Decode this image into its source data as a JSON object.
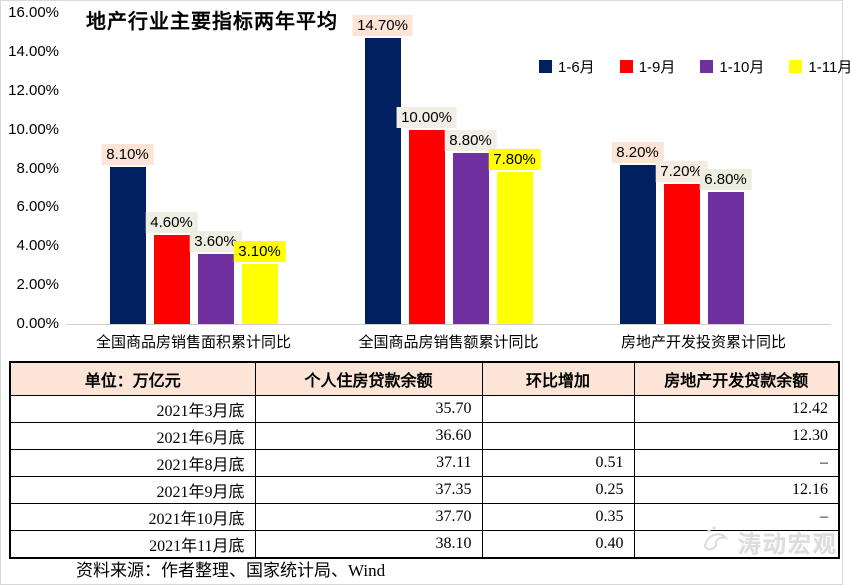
{
  "chart_data": {
    "type": "bar",
    "title": "地产行业主要指标两年平均",
    "categories": [
      "全国商品房销售面积累计同比",
      "全国商品房销售额累计同比",
      "房地产开发投资累计同比"
    ],
    "series": [
      {
        "name": "1-6月",
        "color": "#002060",
        "values": [
          8.1,
          14.7,
          8.2
        ]
      },
      {
        "name": "1-9月",
        "color": "#FF0000",
        "values": [
          4.6,
          10.0,
          7.2
        ]
      },
      {
        "name": "1-10月",
        "color": "#7030A0",
        "values": [
          3.6,
          8.8,
          6.8
        ]
      },
      {
        "name": "1-11月",
        "color": "#FFFF00",
        "values": [
          3.1,
          7.8,
          null
        ]
      }
    ],
    "data_labels": [
      [
        "8.10%",
        "4.60%",
        "3.60%",
        "3.10%"
      ],
      [
        "14.70%",
        "10.00%",
        "8.80%",
        "7.80%"
      ],
      [
        "8.20%",
        "7.20%",
        "6.80%",
        null
      ]
    ],
    "data_label_backgrounds": [
      [
        "#FCE4D6",
        "#EFEEE2",
        "#EFEEE2",
        "#FFFF00"
      ],
      [
        "#FCE4D6",
        "#F1EFE5",
        "#F1EFE5",
        "#FFFF00"
      ],
      [
        "#FCE4D6",
        "#F5EBDF",
        "#ECEFDF",
        null
      ]
    ],
    "ylim": [
      0,
      16
    ],
    "yticks": [
      "16.00%",
      "14.00%",
      "12.00%",
      "10.00%",
      "8.00%",
      "6.00%",
      "4.00%",
      "2.00%",
      "0.00%"
    ],
    "grid": false,
    "legend_position": "top-right"
  },
  "table": {
    "headers": [
      "单位：万亿元",
      "个人住房贷款余额",
      "环比增加",
      "房地产开发贷款余额"
    ],
    "rows": [
      [
        "2021年3月底",
        "35.70",
        "",
        "12.42"
      ],
      [
        "2021年6月底",
        "36.60",
        "",
        "12.30"
      ],
      [
        "2021年8月底",
        "37.11",
        "0.51",
        "–"
      ],
      [
        "2021年9月底",
        "37.35",
        "0.25",
        "12.16"
      ],
      [
        "2021年10月底",
        "37.70",
        "0.35",
        "–"
      ],
      [
        "2021年11月底",
        "38.10",
        "0.40",
        "–"
      ]
    ],
    "header_bg": "#FCE4D6"
  },
  "source_note": "资料来源：作者整理、国家统计局、Wind",
  "watermark": {
    "text": "涛动宏观"
  },
  "colors": {
    "axis_line": "#d0cece",
    "navy": "#002060",
    "red": "#FF0000",
    "purple": "#7030A0",
    "yellow": "#FFFF00",
    "label_peach": "#FCE4D6"
  }
}
